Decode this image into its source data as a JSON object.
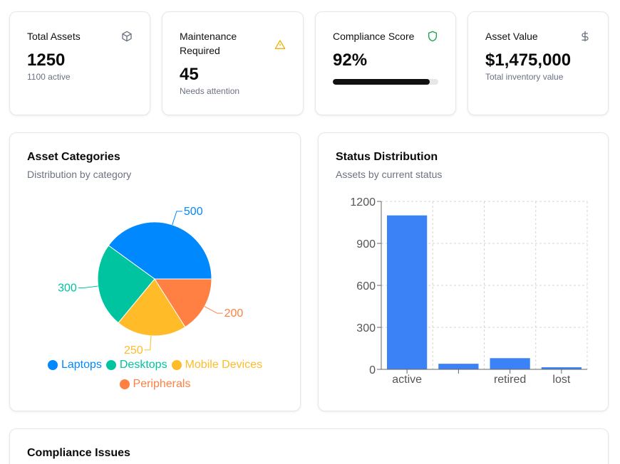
{
  "stats": [
    {
      "title": "Total Assets",
      "value": "1250",
      "sub": "1100 active",
      "icon": "cube-icon"
    },
    {
      "title": "Maintenance Required",
      "value": "45",
      "sub": "Needs attention",
      "icon": "warning-icon"
    },
    {
      "title": "Compliance Score",
      "value": "92%",
      "icon": "shield-icon",
      "progress": 0.92
    },
    {
      "title": "Asset Value",
      "value": "$1,475,000",
      "sub": "Total inventory value",
      "icon": "dollar-icon"
    }
  ],
  "colors": {
    "laptops": "#0088fe",
    "desktops": "#00c49f",
    "mobile": "#ffbb28",
    "peripherals": "#ff8042",
    "bar": "#3b82f6",
    "warning": "#eab308",
    "shield": "#16a34a"
  },
  "categories_panel": {
    "title": "Asset Categories",
    "subtitle": "Distribution by category"
  },
  "status_panel": {
    "title": "Status Distribution",
    "subtitle": "Assets by current status"
  },
  "compliance_panel": {
    "title": "Compliance Issues"
  },
  "chart_data": [
    {
      "type": "pie",
      "labels": [
        "Laptops",
        "Desktops",
        "Mobile Devices",
        "Peripherals"
      ],
      "values": [
        500,
        300,
        250,
        200
      ],
      "legend": "bottom"
    },
    {
      "type": "bar",
      "categories": [
        "active",
        "",
        "retired",
        "lost"
      ],
      "values": [
        1100,
        40,
        80,
        15
      ],
      "ylim": [
        0,
        1200
      ],
      "yticks": [
        0,
        300,
        600,
        900,
        1200
      ],
      "grid": true
    }
  ]
}
